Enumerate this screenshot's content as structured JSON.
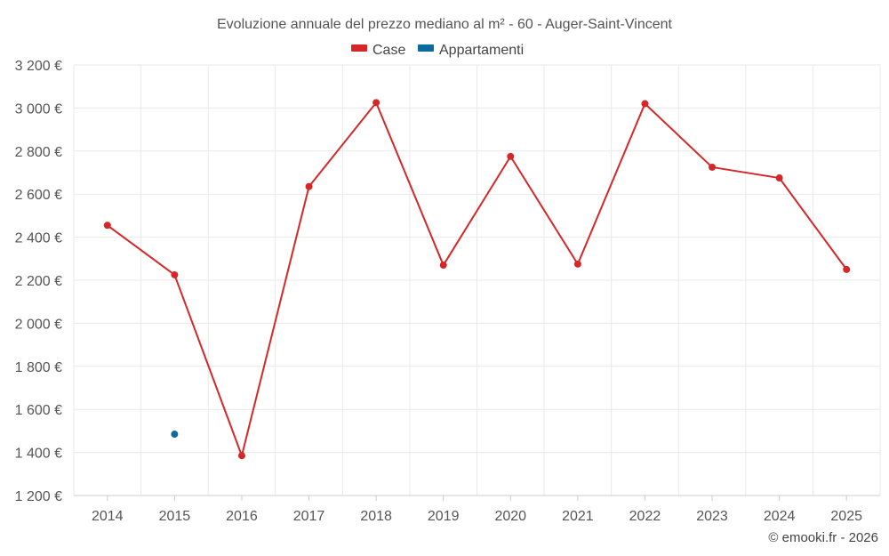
{
  "chart_data": {
    "type": "line",
    "title": "Evoluzione annuale del prezzo mediano al m² - 60 - Auger-Saint-Vincent",
    "categories": [
      "2014",
      "2015",
      "2016",
      "2017",
      "2018",
      "2019",
      "2020",
      "2021",
      "2022",
      "2023",
      "2024",
      "2025"
    ],
    "series": [
      {
        "name": "Case",
        "color": "#d62728",
        "values": [
          2455,
          2225,
          1385,
          2635,
          3025,
          2270,
          2775,
          2275,
          3020,
          2725,
          2675,
          2250
        ]
      },
      {
        "name": "Appartamenti",
        "color": "#0b6aa2",
        "values": [
          null,
          1485,
          null,
          null,
          null,
          null,
          null,
          null,
          null,
          null,
          null,
          null
        ]
      }
    ],
    "ylim": [
      1200,
      3200
    ],
    "yticks": [
      1200,
      1400,
      1600,
      1800,
      2000,
      2200,
      2400,
      2600,
      2800,
      3000,
      3200
    ],
    "ytick_labels": [
      "1 200 €",
      "1 400 €",
      "1 600 €",
      "1 800 €",
      "2 000 €",
      "2 200 €",
      "2 400 €",
      "2 600 €",
      "2 800 €",
      "3 000 €",
      "3 200 €"
    ],
    "xlabel": "",
    "ylabel": "",
    "grid": true,
    "legend_position": "top-center"
  },
  "credit": "© emooki.fr - 2026"
}
